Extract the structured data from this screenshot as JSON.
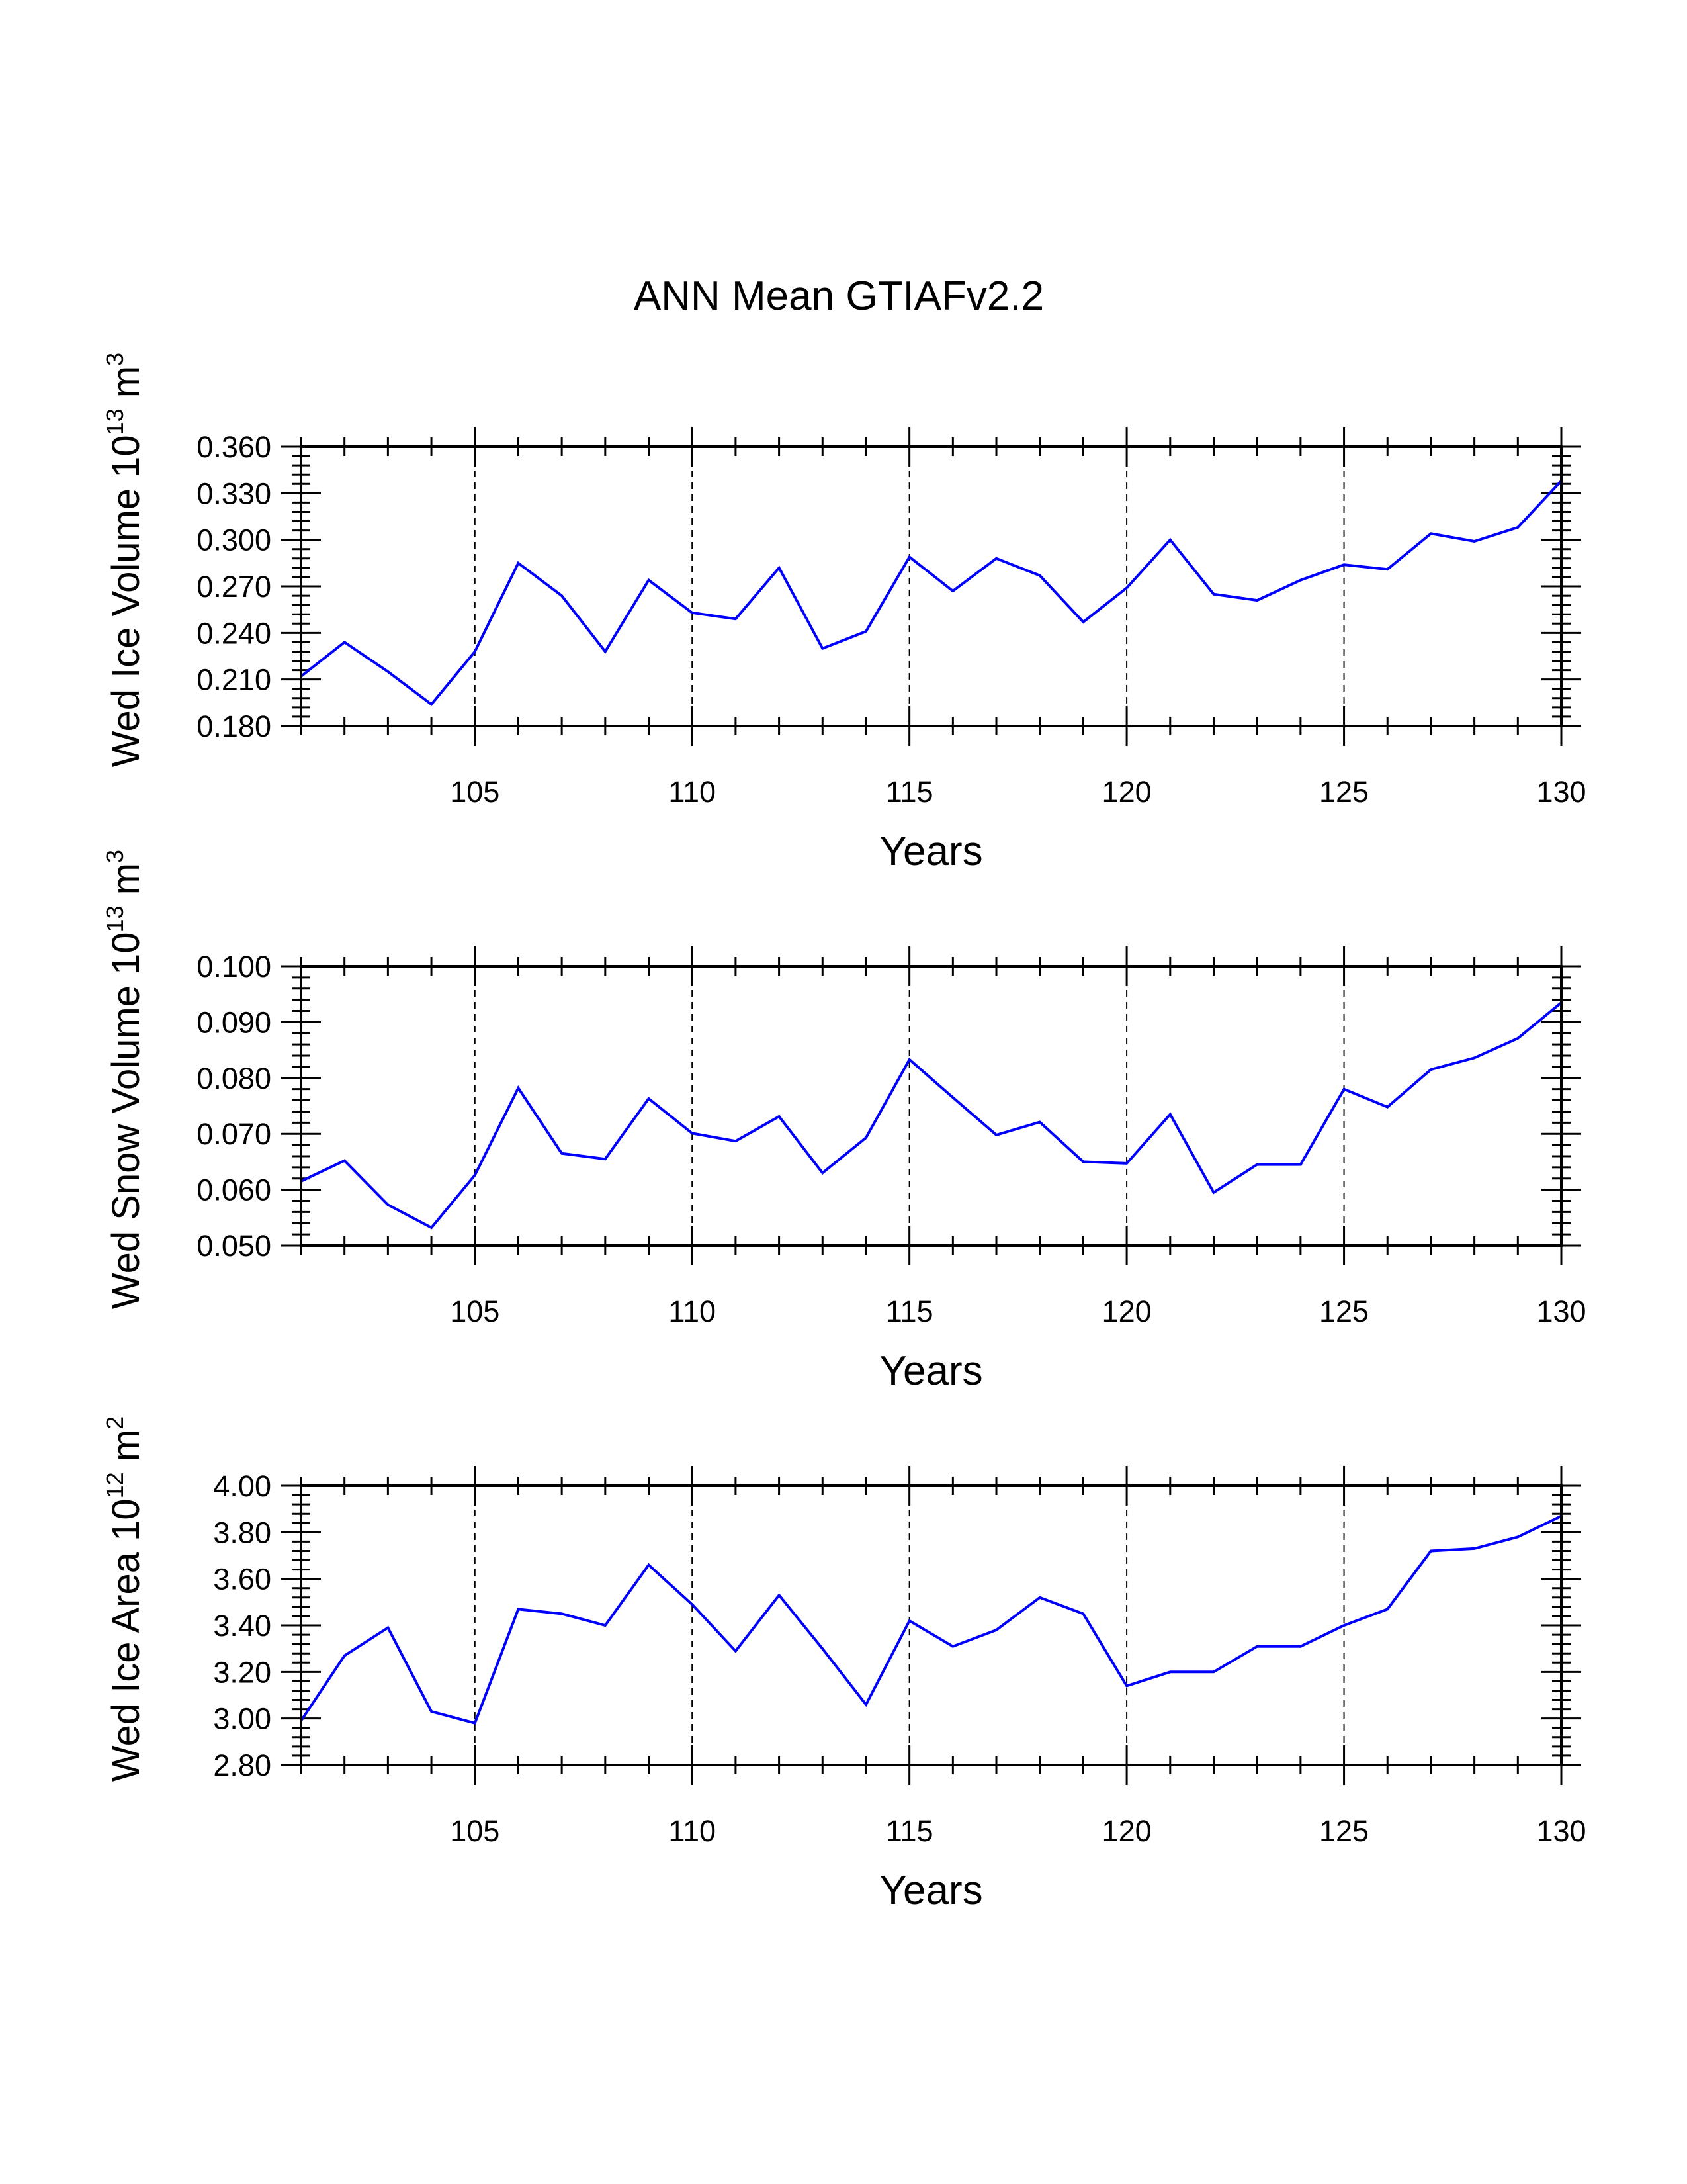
{
  "title": "ANN Mean GTIAFv2.2",
  "colors": {
    "line": "#0000ff",
    "axis": "#000000",
    "grid": "#000000",
    "background": "#ffffff"
  },
  "chart_data": [
    {
      "type": "line",
      "xlabel": "Years",
      "ylabel_parts": {
        "name": "Wed Ice Volume 10",
        "exp": "13",
        "unit": " m",
        "unit_exp": "3"
      },
      "xlim": [
        101,
        130
      ],
      "ylim": [
        0.18,
        0.36
      ],
      "xticks": [
        "105",
        "110",
        "115",
        "120",
        "125",
        "130"
      ],
      "yticks": [
        "0.180",
        "0.210",
        "0.240",
        "0.270",
        "0.300",
        "0.330",
        "0.360"
      ],
      "grid": "dashed vertical at major x ticks",
      "x": [
        101,
        102,
        103,
        104,
        105,
        106,
        107,
        108,
        109,
        110,
        111,
        112,
        113,
        114,
        115,
        116,
        117,
        118,
        119,
        120,
        121,
        122,
        123,
        124,
        125,
        126,
        127,
        128,
        129,
        130
      ],
      "series": [
        {
          "values": [
            0.212,
            0.234,
            0.215,
            0.194,
            0.228,
            0.285,
            0.264,
            0.228,
            0.274,
            0.253,
            0.249,
            0.282,
            0.23,
            0.241,
            0.289,
            0.267,
            0.288,
            0.277,
            0.247,
            0.269,
            0.3,
            0.265,
            0.261,
            0.274,
            0.284,
            0.281,
            0.304,
            0.299,
            0.308,
            0.338
          ]
        }
      ]
    },
    {
      "type": "line",
      "xlabel": "Years",
      "ylabel_parts": {
        "name": "Wed Snow Volume 10",
        "exp": "13",
        "unit": " m",
        "unit_exp": "3"
      },
      "xlim": [
        101,
        130
      ],
      "ylim": [
        0.05,
        0.1
      ],
      "xticks": [
        "105",
        "110",
        "115",
        "120",
        "125",
        "130"
      ],
      "yticks": [
        "0.050",
        "0.060",
        "0.070",
        "0.080",
        "0.090",
        "0.100"
      ],
      "grid": "dashed vertical at major x ticks",
      "x": [
        101,
        102,
        103,
        104,
        105,
        106,
        107,
        108,
        109,
        110,
        111,
        112,
        113,
        114,
        115,
        116,
        117,
        118,
        119,
        120,
        121,
        122,
        123,
        124,
        125,
        126,
        127,
        128,
        129,
        130
      ],
      "series": [
        {
          "values": [
            0.0615,
            0.0652,
            0.0573,
            0.0532,
            0.0626,
            0.0782,
            0.0665,
            0.0655,
            0.0763,
            0.0701,
            0.0687,
            0.0731,
            0.063,
            0.0693,
            0.0833,
            0.0765,
            0.0698,
            0.0721,
            0.065,
            0.0647,
            0.0735,
            0.0595,
            0.0645,
            0.0645,
            0.078,
            0.0748,
            0.0815,
            0.0836,
            0.0871,
            0.0935
          ]
        }
      ]
    },
    {
      "type": "line",
      "xlabel": "Years",
      "ylabel_parts": {
        "name": "Wed Ice Area 10",
        "exp": "12",
        "unit": " m",
        "unit_exp": "2"
      },
      "xlim": [
        101,
        130
      ],
      "ylim": [
        2.8,
        4.0
      ],
      "xticks": [
        "105",
        "110",
        "115",
        "120",
        "125",
        "130"
      ],
      "yticks": [
        "2.80",
        "3.00",
        "3.20",
        "3.40",
        "3.60",
        "3.80",
        "4.00"
      ],
      "grid": "dashed vertical at major x ticks",
      "x": [
        101,
        102,
        103,
        104,
        105,
        106,
        107,
        108,
        109,
        110,
        111,
        112,
        113,
        114,
        115,
        116,
        117,
        118,
        119,
        120,
        121,
        122,
        123,
        124,
        125,
        126,
        127,
        128,
        129,
        130
      ],
      "series": [
        {
          "values": [
            2.99,
            3.27,
            3.39,
            3.03,
            2.98,
            3.47,
            3.45,
            3.4,
            3.66,
            3.49,
            3.29,
            3.53,
            3.3,
            3.06,
            3.42,
            3.31,
            3.38,
            3.52,
            3.45,
            3.14,
            3.2,
            3.2,
            3.31,
            3.31,
            3.4,
            3.47,
            3.72,
            3.73,
            3.78,
            3.87
          ]
        }
      ]
    }
  ]
}
